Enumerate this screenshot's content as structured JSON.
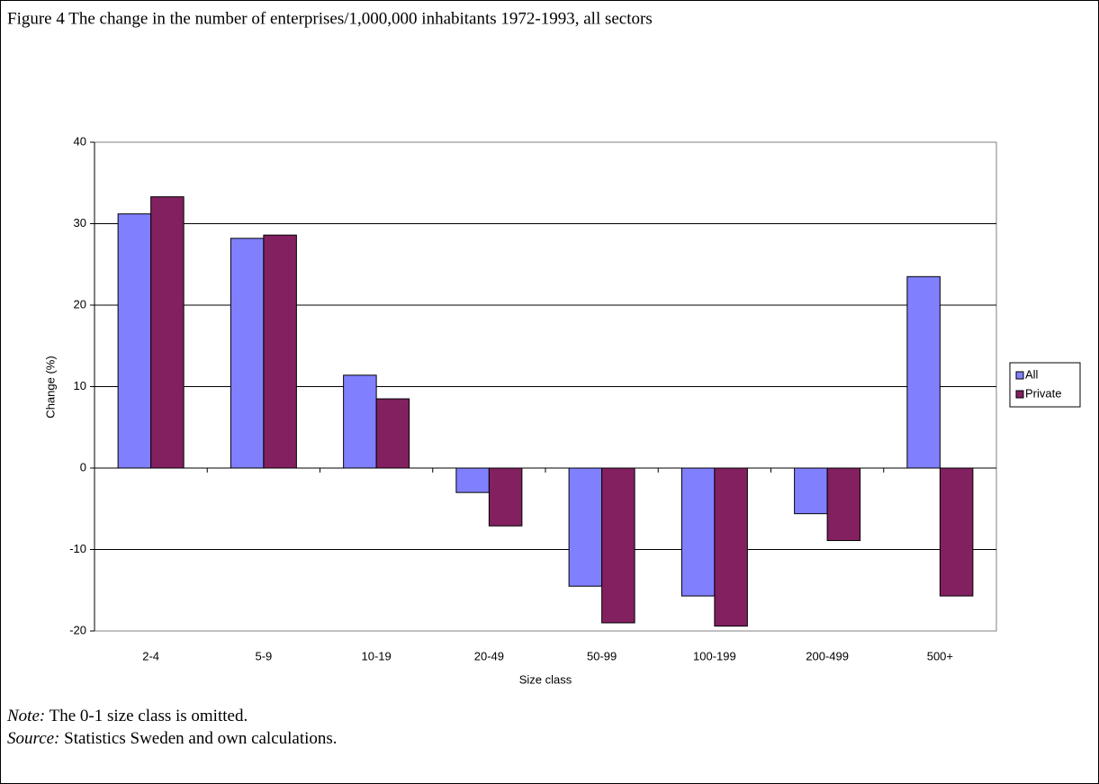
{
  "chart_data": {
    "type": "bar",
    "title": "Figure 4 The change in the number of enterprises/1,000,000 inhabitants 1972-1993, all sectors",
    "x_label": "Size class",
    "y_label": "Change (%)",
    "categories": [
      "2-4",
      "5-9",
      "10-19",
      "20-49",
      "50-99",
      "100-199",
      "200-499",
      "500+"
    ],
    "series": [
      {
        "name": "All",
        "color": "#8080ff",
        "values": [
          31.2,
          28.2,
          11.4,
          -3.0,
          -14.5,
          -15.7,
          -5.6,
          23.5
        ]
      },
      {
        "name": "Private",
        "color": "#822060",
        "values": [
          33.3,
          28.6,
          8.5,
          -7.1,
          -19.0,
          -19.4,
          -8.9,
          -15.7
        ]
      }
    ],
    "ylim": [
      -20,
      40
    ],
    "yticks": [
      -20,
      -10,
      0,
      10,
      20,
      30,
      40
    ],
    "grid": true,
    "legend": "right"
  },
  "notes": [
    {
      "label": "Note:",
      "text": "The 0-1 size class is omitted."
    },
    {
      "label": "Source:",
      "text": "Statistics Sweden and own calculations."
    }
  ]
}
